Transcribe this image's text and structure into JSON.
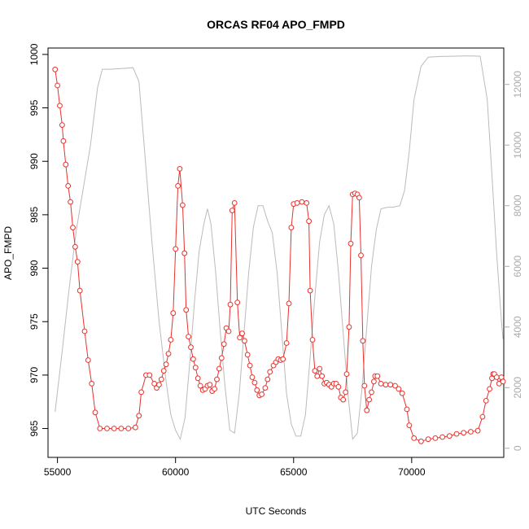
{
  "chart_data": {
    "type": "line",
    "title": "ORCAS RF04 APO_FMPD",
    "xlabel": "UTC Seconds",
    "ylabel": "APO_FMPD",
    "xlim": [
      54600,
      73900
    ],
    "ylim": [
      962.3,
      1000.6
    ],
    "y2lim": [
      -300,
      13200
    ],
    "x_ticks": [
      55000,
      60000,
      65000,
      70000
    ],
    "y_ticks": [
      965,
      970,
      975,
      980,
      985,
      990,
      995,
      1000
    ],
    "y2_ticks": [
      0,
      2000,
      4000,
      6000,
      8000,
      10000,
      12000
    ],
    "series": [
      {
        "color": "#e8322d",
        "style": "line-points",
        "points": [
          [
            54900,
            998.6
          ],
          [
            55000,
            997.1
          ],
          [
            55100,
            995.2
          ],
          [
            55200,
            993.4
          ],
          [
            55250,
            991.9
          ],
          [
            55350,
            989.7
          ],
          [
            55450,
            987.7
          ],
          [
            55550,
            986.2
          ],
          [
            55650,
            983.8
          ],
          [
            55750,
            982.0
          ],
          [
            55850,
            980.6
          ],
          [
            55950,
            977.9
          ],
          [
            56150,
            974.1
          ],
          [
            56300,
            971.4
          ],
          [
            56450,
            969.2
          ],
          [
            56600,
            966.5
          ],
          [
            56800,
            965.0
          ],
          [
            57100,
            965.0
          ],
          [
            57400,
            965.0
          ],
          [
            57700,
            965.0
          ],
          [
            58000,
            965.0
          ],
          [
            58300,
            965.1
          ],
          [
            58450,
            966.2
          ],
          [
            58550,
            968.4
          ],
          [
            58750,
            970.0
          ],
          [
            58900,
            970.0
          ],
          [
            59100,
            969.2
          ],
          [
            59200,
            968.8
          ],
          [
            59300,
            969.1
          ],
          [
            59400,
            969.6
          ],
          [
            59500,
            970.4
          ],
          [
            59600,
            971.0
          ],
          [
            59700,
            972.0
          ],
          [
            59800,
            973.3
          ],
          [
            59900,
            975.8
          ],
          [
            60000,
            981.8
          ],
          [
            60100,
            987.7
          ],
          [
            60180,
            989.3
          ],
          [
            60300,
            985.9
          ],
          [
            60380,
            981.4
          ],
          [
            60450,
            976.1
          ],
          [
            60550,
            973.6
          ],
          [
            60650,
            972.6
          ],
          [
            60750,
            971.5
          ],
          [
            60850,
            970.7
          ],
          [
            60950,
            969.7
          ],
          [
            61050,
            969.0
          ],
          [
            61150,
            968.6
          ],
          [
            61250,
            968.7
          ],
          [
            61350,
            969.0
          ],
          [
            61450,
            969.1
          ],
          [
            61550,
            968.5
          ],
          [
            61650,
            968.7
          ],
          [
            61750,
            969.6
          ],
          [
            61850,
            970.6
          ],
          [
            61950,
            971.6
          ],
          [
            62050,
            972.9
          ],
          [
            62150,
            974.4
          ],
          [
            62250,
            974.1
          ],
          [
            62320,
            976.6
          ],
          [
            62400,
            985.4
          ],
          [
            62500,
            986.1
          ],
          [
            62620,
            976.8
          ],
          [
            62720,
            973.5
          ],
          [
            62820,
            973.9
          ],
          [
            62920,
            973.2
          ],
          [
            63050,
            971.9
          ],
          [
            63150,
            970.9
          ],
          [
            63250,
            969.8
          ],
          [
            63350,
            969.3
          ],
          [
            63450,
            968.6
          ],
          [
            63550,
            968.1
          ],
          [
            63650,
            968.2
          ],
          [
            63800,
            968.8
          ],
          [
            63900,
            969.6
          ],
          [
            64000,
            970.3
          ],
          [
            64150,
            970.9
          ],
          [
            64250,
            971.2
          ],
          [
            64350,
            971.5
          ],
          [
            64450,
            971.4
          ],
          [
            64550,
            971.5
          ],
          [
            64700,
            973.0
          ],
          [
            64800,
            976.7
          ],
          [
            64900,
            983.8
          ],
          [
            65000,
            986.0
          ],
          [
            65150,
            986.1
          ],
          [
            65350,
            986.2
          ],
          [
            65550,
            986.1
          ],
          [
            65650,
            984.4
          ],
          [
            65700,
            977.9
          ],
          [
            65800,
            973.3
          ],
          [
            65900,
            970.4
          ],
          [
            66000,
            969.9
          ],
          [
            66100,
            970.6
          ],
          [
            66200,
            969.9
          ],
          [
            66300,
            969.2
          ],
          [
            66400,
            969.3
          ],
          [
            66500,
            969.1
          ],
          [
            66600,
            968.9
          ],
          [
            66700,
            969.2
          ],
          [
            66800,
            969.2
          ],
          [
            66900,
            968.9
          ],
          [
            67000,
            967.9
          ],
          [
            67100,
            967.7
          ],
          [
            67200,
            968.4
          ],
          [
            67250,
            970.1
          ],
          [
            67350,
            974.5
          ],
          [
            67420,
            982.3
          ],
          [
            67500,
            986.9
          ],
          [
            67600,
            987.0
          ],
          [
            67700,
            986.9
          ],
          [
            67780,
            986.6
          ],
          [
            67850,
            981.2
          ],
          [
            67930,
            973.2
          ],
          [
            68000,
            969.0
          ],
          [
            68100,
            966.7
          ],
          [
            68200,
            967.7
          ],
          [
            68300,
            968.4
          ],
          [
            68400,
            969.4
          ],
          [
            68450,
            969.9
          ],
          [
            68550,
            969.9
          ],
          [
            68700,
            969.2
          ],
          [
            68900,
            969.1
          ],
          [
            69100,
            969.1
          ],
          [
            69300,
            969.0
          ],
          [
            69450,
            968.7
          ],
          [
            69600,
            968.3
          ],
          [
            69800,
            966.8
          ],
          [
            69900,
            965.3
          ],
          [
            70100,
            964.1
          ],
          [
            70400,
            963.8
          ],
          [
            70700,
            964.0
          ],
          [
            71000,
            964.1
          ],
          [
            71300,
            964.2
          ],
          [
            71600,
            964.3
          ],
          [
            71900,
            964.5
          ],
          [
            72200,
            964.6
          ],
          [
            72500,
            964.7
          ],
          [
            72800,
            964.8
          ],
          [
            73000,
            966.1
          ],
          [
            73150,
            967.6
          ],
          [
            73300,
            968.7
          ],
          [
            73400,
            969.7
          ],
          [
            73450,
            970.1
          ],
          [
            73500,
            970.1
          ],
          [
            73600,
            969.8
          ],
          [
            73700,
            969.2
          ],
          [
            73800,
            969.8
          ],
          [
            73870,
            969.4
          ]
        ]
      },
      {
        "color": "#bbbbbb",
        "axis": "right",
        "style": "line",
        "points": [
          [
            54900,
            1200
          ],
          [
            55200,
            3200
          ],
          [
            55500,
            5300
          ],
          [
            55800,
            7200
          ],
          [
            56100,
            8600
          ],
          [
            56400,
            10000
          ],
          [
            56700,
            11900
          ],
          [
            56900,
            12500
          ],
          [
            57200,
            12500
          ],
          [
            57700,
            12520
          ],
          [
            58200,
            12550
          ],
          [
            58450,
            12100
          ],
          [
            58700,
            9700
          ],
          [
            59000,
            6800
          ],
          [
            59300,
            4200
          ],
          [
            59600,
            2200
          ],
          [
            59800,
            1100
          ],
          [
            60000,
            600
          ],
          [
            60200,
            300
          ],
          [
            60400,
            1000
          ],
          [
            60600,
            2800
          ],
          [
            60800,
            4800
          ],
          [
            61000,
            6500
          ],
          [
            61200,
            7400
          ],
          [
            61350,
            7900
          ],
          [
            61500,
            7400
          ],
          [
            61700,
            5800
          ],
          [
            61900,
            3800
          ],
          [
            62100,
            2000
          ],
          [
            62300,
            600
          ],
          [
            62500,
            500
          ],
          [
            62700,
            1800
          ],
          [
            62900,
            3800
          ],
          [
            63100,
            5800
          ],
          [
            63300,
            7300
          ],
          [
            63500,
            8000
          ],
          [
            63700,
            8000
          ],
          [
            63900,
            7500
          ],
          [
            64100,
            7100
          ],
          [
            64300,
            5800
          ],
          [
            64500,
            3800
          ],
          [
            64700,
            1800
          ],
          [
            64900,
            800
          ],
          [
            65100,
            400
          ],
          [
            65300,
            400
          ],
          [
            65500,
            1100
          ],
          [
            65700,
            3000
          ],
          [
            65900,
            5000
          ],
          [
            66100,
            6800
          ],
          [
            66300,
            7700
          ],
          [
            66500,
            8000
          ],
          [
            66700,
            7400
          ],
          [
            66900,
            5800
          ],
          [
            67100,
            3800
          ],
          [
            67300,
            1800
          ],
          [
            67500,
            300
          ],
          [
            67700,
            500
          ],
          [
            67900,
            2000
          ],
          [
            68100,
            4000
          ],
          [
            68300,
            6000
          ],
          [
            68500,
            7200
          ],
          [
            68700,
            7900
          ],
          [
            69000,
            7950
          ],
          [
            69200,
            7950
          ],
          [
            69500,
            8000
          ],
          [
            69700,
            8500
          ],
          [
            69900,
            9800
          ],
          [
            70100,
            11500
          ],
          [
            70400,
            12600
          ],
          [
            70700,
            12900
          ],
          [
            71200,
            12920
          ],
          [
            71700,
            12930
          ],
          [
            72200,
            12940
          ],
          [
            72600,
            12940
          ],
          [
            72900,
            12930
          ],
          [
            73200,
            11500
          ],
          [
            73400,
            9000
          ],
          [
            73600,
            6400
          ],
          [
            73800,
            4200
          ],
          [
            73870,
            3600
          ]
        ]
      }
    ]
  }
}
